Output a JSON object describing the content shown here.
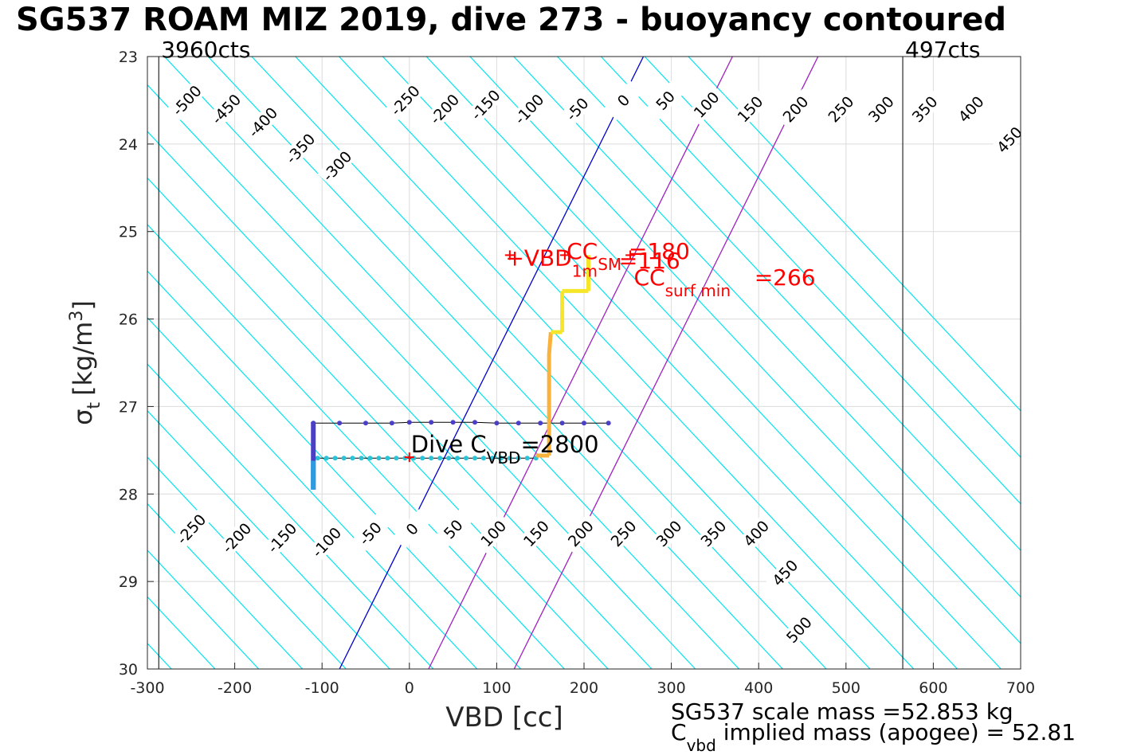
{
  "title": "SG537 ROAM MIZ 2019, dive 273 - buoyancy contoured",
  "footer": {
    "scale_mass": "SG537 scale mass =52.853 kg",
    "implied_mass_prefix": "C",
    "implied_mass_sub": "vbd",
    "implied_mass_rest": " implied mass (apogee) = 52.81"
  },
  "colors": {
    "contour": "#00e5ee",
    "zero_line": "#0000cc",
    "limit_line": "#a020c0",
    "annotation": "#ff0000",
    "descent": "#4b3fc8",
    "ascent": "#2ac3d8",
    "climb_top": "#f5e62a",
    "climb_mid": "#fbb23a"
  },
  "chart_data": {
    "type": "line",
    "xlabel": "VBD [cc]",
    "ylabel_symbol": "σ",
    "ylabel_sub": "t",
    "ylabel_units": "[kg/m",
    "ylabel_sup": "3",
    "ylabel_close": "]",
    "xlim": [
      -300,
      700
    ],
    "ylim": [
      23,
      30
    ],
    "y_reversed": true,
    "grid": true,
    "xticks": [
      -300,
      -200,
      -100,
      0,
      100,
      200,
      300,
      400,
      500,
      600,
      700
    ],
    "yticks": [
      23,
      24,
      25,
      26,
      27,
      28,
      29,
      30
    ],
    "contour_slope_cc_per_sigma": 94,
    "contour_levels": [
      -1050,
      -1000,
      -950,
      -900,
      -850,
      -800,
      -750,
      -700,
      -650,
      -600,
      -550,
      -500,
      -450,
      -400,
      -350,
      -300,
      -250,
      -200,
      -150,
      -100,
      -50,
      0,
      50,
      100,
      150,
      200,
      250,
      300,
      350,
      400,
      450,
      500,
      550,
      600,
      650,
      700,
      750
    ],
    "contour_reference_sigma": 27.58,
    "contour_labels": [
      {
        "text": "-500",
        "x": -255,
        "y": 23.5
      },
      {
        "text": "-450",
        "x": -210,
        "y": 23.6
      },
      {
        "text": "-400",
        "x": -168,
        "y": 23.75
      },
      {
        "text": "-350",
        "x": -125,
        "y": 24.05
      },
      {
        "text": "-300",
        "x": -83,
        "y": 24.25
      },
      {
        "text": "-250",
        "x": -5,
        "y": 23.5
      },
      {
        "text": "-200",
        "x": 40,
        "y": 23.6
      },
      {
        "text": "-150",
        "x": 87,
        "y": 23.55
      },
      {
        "text": "-100",
        "x": 137,
        "y": 23.6
      },
      {
        "text": "-50",
        "x": 192,
        "y": 23.6
      },
      {
        "text": "0",
        "x": 245,
        "y": 23.5
      },
      {
        "text": "50",
        "x": 293,
        "y": 23.5
      },
      {
        "text": "100",
        "x": 340,
        "y": 23.55
      },
      {
        "text": "150",
        "x": 390,
        "y": 23.6
      },
      {
        "text": "200",
        "x": 442,
        "y": 23.6
      },
      {
        "text": "250",
        "x": 494,
        "y": 23.6
      },
      {
        "text": "300",
        "x": 540,
        "y": 23.6
      },
      {
        "text": "350",
        "x": 590,
        "y": 23.6
      },
      {
        "text": "400",
        "x": 643,
        "y": 23.6
      },
      {
        "text": "450",
        "x": 687,
        "y": 23.95
      },
      {
        "text": "-250",
        "x": -250,
        "y": 28.4
      },
      {
        "text": "-200",
        "x": -198,
        "y": 28.5
      },
      {
        "text": "-150",
        "x": -146,
        "y": 28.5
      },
      {
        "text": "-100",
        "x": -95,
        "y": 28.55
      },
      {
        "text": "-50",
        "x": -45,
        "y": 28.45
      },
      {
        "text": "0",
        "x": 3,
        "y": 28.4
      },
      {
        "text": "50",
        "x": 50,
        "y": 28.4
      },
      {
        "text": "100",
        "x": 96,
        "y": 28.45
      },
      {
        "text": "150",
        "x": 145,
        "y": 28.45
      },
      {
        "text": "200",
        "x": 196,
        "y": 28.45
      },
      {
        "text": "250",
        "x": 245,
        "y": 28.45
      },
      {
        "text": "300",
        "x": 297,
        "y": 28.45
      },
      {
        "text": "350",
        "x": 348,
        "y": 28.45
      },
      {
        "text": "400",
        "x": 397,
        "y": 28.45
      },
      {
        "text": "450",
        "x": 430,
        "y": 28.9
      },
      {
        "text": "500",
        "x": 446,
        "y": 29.55
      }
    ],
    "reference_lines": [
      {
        "name": "zero",
        "points": [
          [
            -80,
            30
          ],
          [
            268,
            23
          ]
        ]
      },
      {
        "name": "limit-low",
        "points": [
          [
            22,
            30
          ],
          [
            370,
            23
          ]
        ]
      },
      {
        "name": "limit-high",
        "points": [
          [
            120,
            30
          ],
          [
            468,
            23
          ]
        ]
      }
    ],
    "count_limits": [
      {
        "label": "3960cts",
        "x": -287
      },
      {
        "label": "497cts",
        "x": 565
      }
    ],
    "annotations": [
      {
        "text": "+VBD",
        "sub": "1m",
        "x": 110,
        "y": 25.3,
        "size": 28
      },
      {
        "text": "CC",
        "sub": "SM",
        "x": 180,
        "y": 25.22,
        "size": 28
      },
      {
        "text": "=180",
        "x": 251,
        "y": 25.22,
        "size": 28
      },
      {
        "text": "=116",
        "x": 240,
        "y": 25.33,
        "size": 28
      },
      {
        "text": "CC",
        "sub": "surf min",
        "x": 257,
        "y": 25.52,
        "size": 28
      },
      {
        "text": "=266",
        "x": 395,
        "y": 25.52,
        "size": 28
      }
    ],
    "dive_label": {
      "text": "Dive C",
      "sub": "VBD",
      "suffix": "=2800",
      "x": 0,
      "y": 27.58
    },
    "markers": [
      {
        "x": 0,
        "y": 27.58
      },
      {
        "x": 115,
        "y": 25.27
      },
      {
        "x": 178,
        "y": 25.27
      },
      {
        "x": 253,
        "y": 25.27
      }
    ],
    "series": [
      {
        "name": "",
        "role": "descent",
        "x": [
          -110,
          -80,
          -50,
          -20,
          0,
          25,
          50,
          75,
          100,
          125,
          150,
          175,
          200,
          228
        ],
        "y": [
          27.19,
          27.19,
          27.19,
          27.19,
          27.18,
          27.18,
          27.18,
          27.18,
          27.19,
          27.19,
          27.19,
          27.19,
          27.19,
          27.19
        ]
      },
      {
        "name": "",
        "role": "ascent",
        "x": [
          -105,
          -95,
          -85,
          -75,
          -65,
          -55,
          -45,
          -35,
          -25,
          -15,
          -5,
          5,
          15,
          25,
          35,
          45,
          55,
          65,
          75,
          85,
          95,
          105,
          115,
          125,
          135,
          145
        ],
        "y": [
          27.59,
          27.59,
          27.59,
          27.59,
          27.59,
          27.59,
          27.59,
          27.59,
          27.59,
          27.59,
          27.59,
          27.59,
          27.59,
          27.59,
          27.59,
          27.59,
          27.59,
          27.59,
          27.59,
          27.59,
          27.59,
          27.59,
          27.59,
          27.59,
          27.59,
          27.59
        ]
      },
      {
        "name": "",
        "role": "bottom",
        "x": [
          -110,
          -110,
          -110,
          -110,
          -110,
          -110,
          -110,
          -110,
          -110
        ],
        "y": [
          27.18,
          27.3,
          27.45,
          27.55,
          27.65,
          27.72,
          27.8,
          27.88,
          27.95
        ]
      },
      {
        "name": "",
        "role": "climb",
        "x": [
          145,
          160,
          160,
          160,
          160,
          162,
          175,
          175,
          175,
          178,
          205,
          205,
          205
        ],
        "y": [
          27.56,
          27.56,
          27.2,
          26.8,
          26.4,
          26.15,
          26.15,
          25.9,
          25.68,
          25.68,
          25.68,
          25.5,
          25.27
        ]
      }
    ]
  }
}
